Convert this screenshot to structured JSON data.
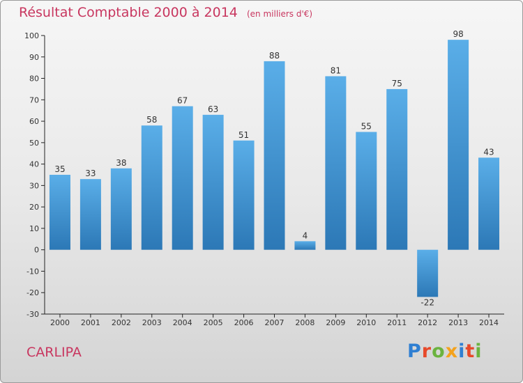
{
  "header": {
    "title": "Résultat Comptable 2000 à 2014",
    "unit": "(en milliers d'€)"
  },
  "footer": {
    "town": "CARLIPA",
    "logo": "Proxiti"
  },
  "colors": {
    "title": "#c8365f",
    "bar_light": "#5aaee8",
    "bar_dark": "#2c78b6"
  },
  "chart_data": {
    "type": "bar",
    "categories": [
      "2000",
      "2001",
      "2002",
      "2003",
      "2004",
      "2005",
      "2006",
      "2007",
      "2008",
      "2009",
      "2010",
      "2011",
      "2012",
      "2013",
      "2014"
    ],
    "values": [
      35,
      33,
      38,
      58,
      67,
      63,
      51,
      88,
      4,
      81,
      55,
      75,
      -22,
      98,
      43
    ],
    "ylim": [
      -30,
      100
    ],
    "yticks": [
      -30,
      -20,
      -10,
      0,
      10,
      20,
      30,
      40,
      50,
      60,
      70,
      80,
      90,
      100
    ],
    "grid": false,
    "legend": "none"
  }
}
